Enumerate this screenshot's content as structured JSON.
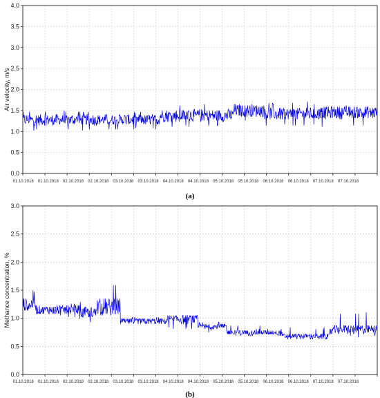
{
  "chart_data": [
    {
      "type": "line",
      "panel": "(a)",
      "ylabel": "Air velocity, m/s",
      "ylim": [
        0.0,
        4.0
      ],
      "yticks": [
        "0.0",
        "0.5",
        "1.0",
        "1.5",
        "2.0",
        "2.5",
        "3.0",
        "3.5",
        "4.0"
      ],
      "x_tick_labels": [
        "01.10.2018",
        "01.10.2018",
        "02.10.2018",
        "02.10.2018",
        "03.10.2018",
        "03.10.2018",
        "04.10.2018",
        "04.10.2018",
        "05.10.2018",
        "05.10.2018",
        "06.10.2018",
        "06.10.2018",
        "07.10.2018",
        "07.10.2018"
      ],
      "grid": true,
      "color": "#0000e6",
      "segments": [
        {
          "x_start": 0.0,
          "x_end": 6.2,
          "base": 1.28,
          "band": 0.13,
          "spike_max": 1.5,
          "spike_min": 1.02
        },
        {
          "x_start": 6.2,
          "x_end": 9.5,
          "base": 1.38,
          "band": 0.15,
          "spike_max": 1.65,
          "spike_min": 1.1
        },
        {
          "x_start": 9.5,
          "x_end": 10.9,
          "base": 1.5,
          "band": 0.15,
          "spike_max": 1.8,
          "spike_min": 1.25
        },
        {
          "x_start": 10.9,
          "x_end": 13.4,
          "base": 1.42,
          "band": 0.15,
          "spike_max": 1.7,
          "spike_min": 1.12
        },
        {
          "x_start": 13.4,
          "x_end": 16.0,
          "base": 1.45,
          "band": 0.15,
          "spike_max": 1.65,
          "spike_min": 1.1
        }
      ]
    },
    {
      "type": "line",
      "panel": "(b)",
      "ylabel": "Methance concentration, %",
      "ylim": [
        0.0,
        3.0
      ],
      "yticks": [
        "0.0",
        "0.5",
        "1.0",
        "1.5",
        "2.0",
        "2.5",
        "3.0"
      ],
      "x_tick_labels": [
        "01.10.2018",
        "01.10.2018",
        "02.10.2018",
        "02.10.2018",
        "03.10.2018",
        "03.10.2018",
        "04.10.2018",
        "04.10.2018",
        "05.10.2018",
        "05.10.2018",
        "06.10.2018",
        "06.10.2018",
        "07.10.2018",
        "07.10.2018"
      ],
      "grid": true,
      "color": "#0000e6",
      "segments": [
        {
          "x_start": 0.0,
          "x_end": 0.6,
          "base": 1.25,
          "band": 0.12,
          "spike_max": 1.5,
          "spike_min": 1.1
        },
        {
          "x_start": 0.6,
          "x_end": 2.6,
          "base": 1.15,
          "band": 0.08,
          "spike_max": 1.3,
          "spike_min": 1.0
        },
        {
          "x_start": 2.6,
          "x_end": 3.3,
          "base": 1.1,
          "band": 0.1,
          "spike_max": 1.3,
          "spike_min": 0.9
        },
        {
          "x_start": 3.3,
          "x_end": 4.4,
          "base": 1.2,
          "band": 0.15,
          "spike_max": 1.6,
          "spike_min": 1.0
        },
        {
          "x_start": 4.4,
          "x_end": 6.5,
          "base": 0.95,
          "band": 0.05,
          "spike_max": 1.05,
          "spike_min": 0.85
        },
        {
          "x_start": 6.5,
          "x_end": 7.9,
          "base": 0.98,
          "band": 0.08,
          "spike_max": 1.2,
          "spike_min": 0.8
        },
        {
          "x_start": 7.9,
          "x_end": 9.2,
          "base": 0.85,
          "band": 0.05,
          "spike_max": 0.95,
          "spike_min": 0.75
        },
        {
          "x_start": 9.2,
          "x_end": 11.7,
          "base": 0.75,
          "band": 0.05,
          "spike_max": 0.88,
          "spike_min": 0.68
        },
        {
          "x_start": 11.7,
          "x_end": 13.9,
          "base": 0.68,
          "band": 0.05,
          "spike_max": 0.85,
          "spike_min": 0.62
        },
        {
          "x_start": 13.9,
          "x_end": 16.0,
          "base": 0.8,
          "band": 0.08,
          "spike_max": 1.1,
          "spike_min": 0.65
        }
      ]
    }
  ],
  "captions": [
    "(a)",
    "(b)"
  ]
}
